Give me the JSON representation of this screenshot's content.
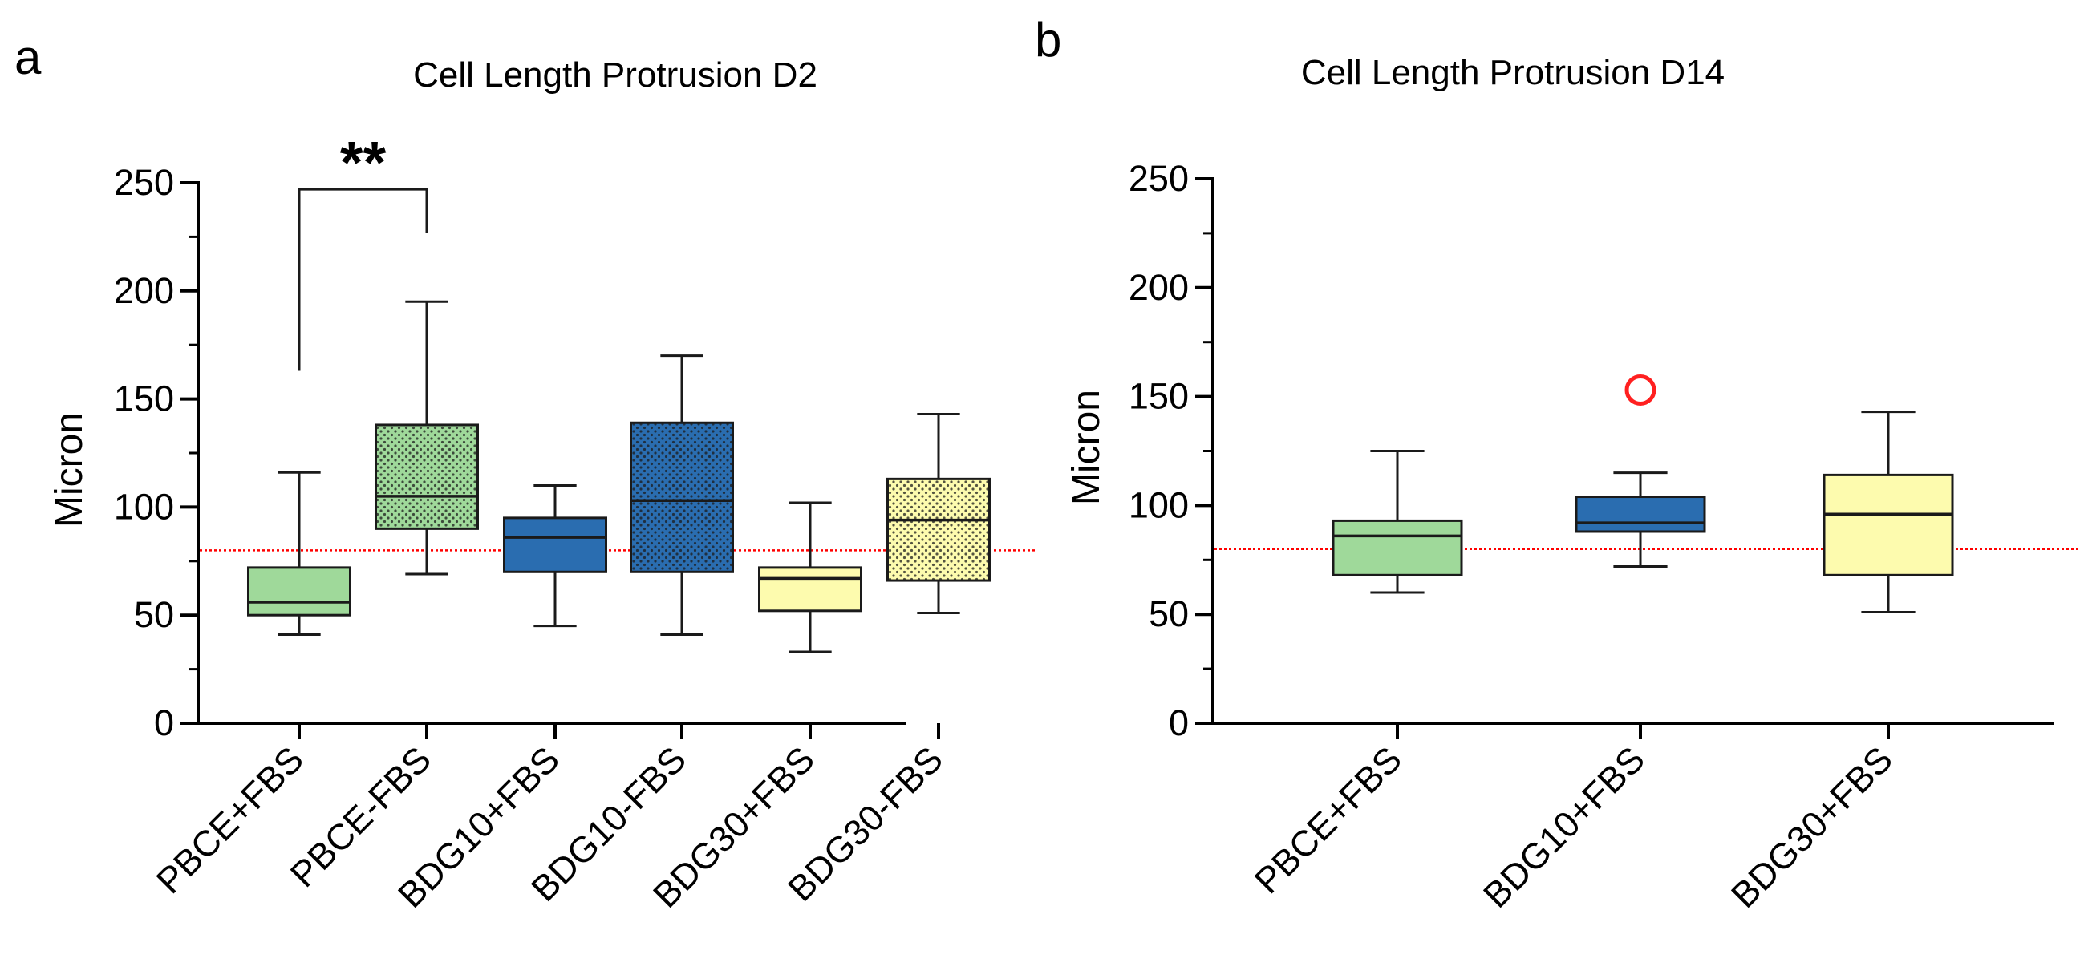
{
  "colors": {
    "green": "#9fd99a",
    "blue": "#2a6db0",
    "yellow": "#fdfbae",
    "reference_line": "#ff0000",
    "outlier": "#ff2020",
    "stroke": "#1a1a1a"
  },
  "chart_data": [
    {
      "type": "box",
      "panel_label": "a",
      "title": "Cell Length Protrusion D2",
      "xlabel": "",
      "ylabel": "Micron",
      "ylim": [
        0,
        250
      ],
      "yticks": [
        0,
        50,
        100,
        150,
        200,
        250
      ],
      "ytick_labels": [
        "0",
        "50",
        "100",
        "150",
        "200",
        "250"
      ],
      "reference_line": 80,
      "categories": [
        "PBCE+FBS",
        "PBCE-FBS",
        "BDG10+FBS",
        "BDG10-FBS",
        "BDG30+FBS",
        "BDG30-FBS"
      ],
      "boxes": [
        {
          "min": 41,
          "q1": 50,
          "median": 56,
          "q3": 72,
          "max": 116,
          "color": "green",
          "dotted": false
        },
        {
          "min": 69,
          "q1": 90,
          "median": 105,
          "q3": 138,
          "max": 195,
          "color": "green",
          "dotted": true
        },
        {
          "min": 45,
          "q1": 70,
          "median": 86,
          "q3": 95,
          "max": 110,
          "color": "blue",
          "dotted": false
        },
        {
          "min": 41,
          "q1": 70,
          "median": 103,
          "q3": 139,
          "max": 170,
          "color": "blue",
          "dotted": true
        },
        {
          "min": 33,
          "q1": 52,
          "median": 67,
          "q3": 72,
          "max": 102,
          "color": "yellow",
          "dotted": false
        },
        {
          "min": 51,
          "q1": 66,
          "median": 94,
          "q3": 113,
          "max": 143,
          "color": "yellow",
          "dotted": true
        }
      ],
      "significance": {
        "between": [
          0,
          1
        ],
        "label": "**",
        "left_y": 163,
        "right_y": 227,
        "top_y": 247
      }
    },
    {
      "type": "box",
      "panel_label": "b",
      "title": "Cell Length Protrusion D14",
      "xlabel": "",
      "ylabel": "Micron",
      "ylim": [
        0,
        250
      ],
      "yticks": [
        0,
        50,
        100,
        150,
        200,
        250
      ],
      "ytick_labels": [
        "0",
        "50",
        "100",
        "150",
        "200",
        "250"
      ],
      "reference_line": 80,
      "categories": [
        "PBCE+FBS",
        "BDG10+FBS",
        "BDG30+FBS"
      ],
      "boxes": [
        {
          "min": 60,
          "q1": 68,
          "median": 86,
          "q3": 93,
          "max": 125,
          "color": "green",
          "dotted": false
        },
        {
          "min": 72,
          "q1": 88,
          "median": 92,
          "q3": 104,
          "max": 115,
          "color": "blue",
          "dotted": false,
          "outliers": [
            153
          ]
        },
        {
          "min": 51,
          "q1": 68,
          "median": 96,
          "q3": 114,
          "max": 143,
          "color": "yellow",
          "dotted": false
        }
      ]
    }
  ]
}
